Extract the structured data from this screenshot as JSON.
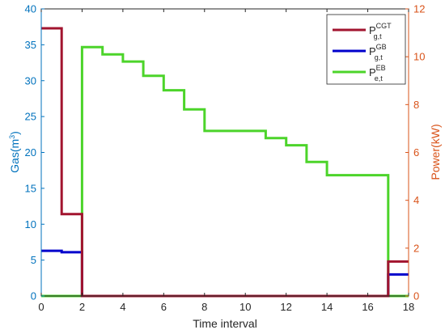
{
  "chart_data": {
    "type": "line",
    "xlabel": "Time interval",
    "ylabel_left": "Gas(m3)",
    "ylabel_left_base": "Gas(m",
    "ylabel_left_sup": "3",
    "ylabel_left_tail": ")",
    "ylabel_right": "Power(kW)",
    "xlim": [
      0,
      18
    ],
    "ylim_left": [
      0,
      40
    ],
    "ylim_right": [
      0,
      12
    ],
    "xticks": [
      "0",
      "2",
      "4",
      "6",
      "8",
      "10",
      "12",
      "14",
      "16",
      "18"
    ],
    "yticks_left": [
      "0",
      "5",
      "10",
      "15",
      "20",
      "25",
      "30",
      "35",
      "40"
    ],
    "yticks_right": [
      "0",
      "2",
      "4",
      "6",
      "8",
      "10",
      "12"
    ],
    "grid": false,
    "legend_position": "top-right",
    "axis_colors": {
      "left": "#0072BD",
      "right": "#D95319"
    },
    "series": [
      {
        "name": "P_g,t^CGT",
        "legend_main": "P",
        "legend_sup": "CGT",
        "legend_sub": "g,t",
        "color": "#A2142F",
        "axis": "left",
        "step_x": [
          0,
          1,
          2,
          3,
          4,
          5,
          6,
          7,
          8,
          9,
          10,
          11,
          12,
          13,
          14,
          15,
          16,
          17,
          18
        ],
        "step_y": [
          37.3,
          11.4,
          0,
          0,
          0,
          0,
          0,
          0,
          0,
          0,
          0,
          0,
          0,
          0,
          0,
          0,
          0,
          4.8
        ]
      },
      {
        "name": "P_g,t^GB",
        "legend_main": "P",
        "legend_sup": "GB",
        "legend_sub": "g,t",
        "color": "#0000CC",
        "axis": "left",
        "step_x": [
          0,
          1,
          2,
          3,
          4,
          5,
          6,
          7,
          8,
          9,
          10,
          11,
          12,
          13,
          14,
          15,
          16,
          17,
          18
        ],
        "step_y": [
          6.3,
          6.1,
          0,
          0,
          0,
          0,
          0,
          0,
          0,
          0,
          0,
          0,
          0,
          0,
          0,
          0,
          0,
          3.0
        ]
      },
      {
        "name": "P_e,t^EB",
        "legend_main": "P",
        "legend_sup": "EB",
        "legend_sub": "e,t",
        "color": "#4CD42A",
        "axis": "right",
        "step_x": [
          0,
          1,
          2,
          3,
          4,
          5,
          6,
          7,
          8,
          9,
          10,
          11,
          12,
          13,
          14,
          15,
          16,
          17,
          18
        ],
        "step_y": [
          0,
          0,
          10.4,
          10.1,
          9.8,
          9.2,
          8.6,
          7.8,
          6.9,
          6.9,
          6.9,
          6.6,
          6.3,
          5.6,
          5.05,
          5.05,
          5.05,
          0
        ]
      }
    ]
  }
}
